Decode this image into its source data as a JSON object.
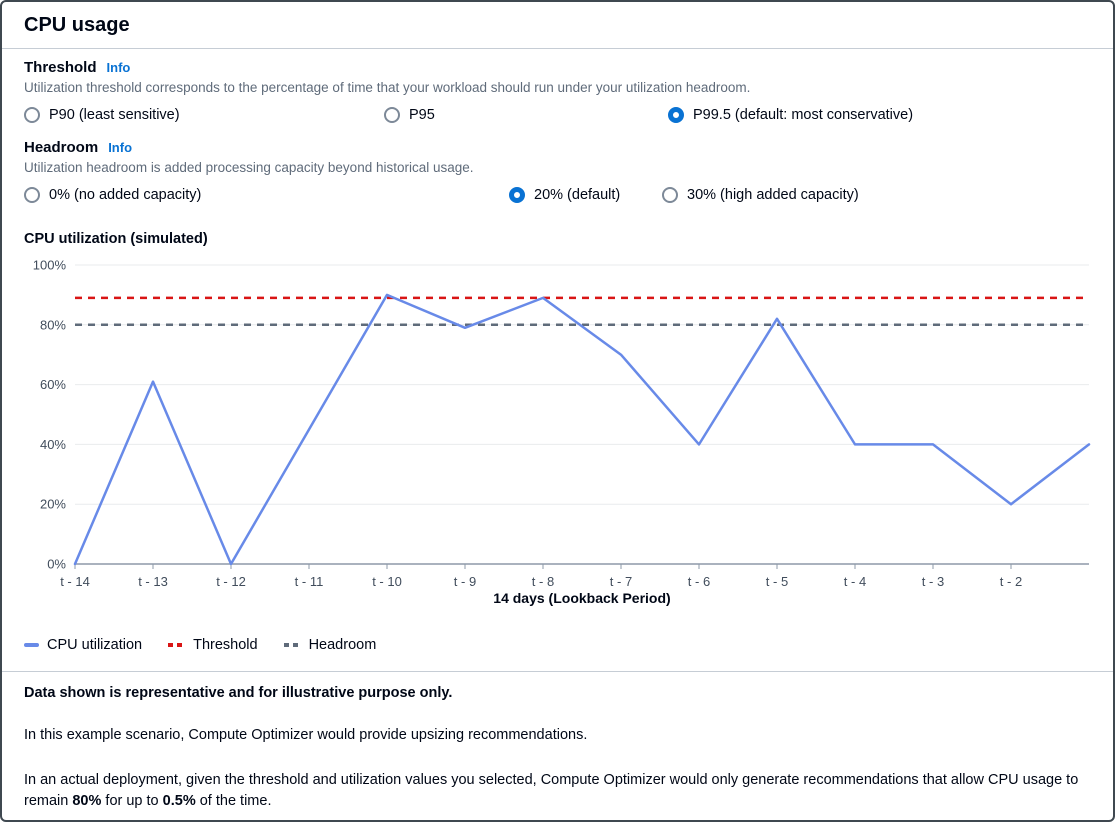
{
  "page": {
    "title": "CPU usage"
  },
  "threshold": {
    "label": "Threshold",
    "info": "Info",
    "description": "Utilization threshold corresponds to the percentage of time that your workload should run under your utilization headroom.",
    "options": [
      {
        "label": "P90 (least sensitive)",
        "selected": false
      },
      {
        "label": "P95",
        "selected": false
      },
      {
        "label": "P99.5 (default: most conservative)",
        "selected": true
      }
    ]
  },
  "headroom": {
    "label": "Headroom",
    "info": "Info",
    "description": "Utilization headroom is added processing capacity beyond historical usage.",
    "options": [
      {
        "label": "0% (no added capacity)",
        "selected": false
      },
      {
        "label": "20% (default)",
        "selected": true
      },
      {
        "label": "30% (high added capacity)",
        "selected": false
      }
    ]
  },
  "chart_data": {
    "type": "line",
    "title": "CPU utilization (simulated)",
    "xlabel": "14 days (Lookback Period)",
    "ylabel": "",
    "ylim": [
      0,
      100
    ],
    "y_ticks": [
      0,
      20,
      40,
      60,
      80,
      100
    ],
    "y_tick_suffix": "%",
    "grid": true,
    "legend_position": "bottom",
    "x_tick_labels": [
      "t - 14",
      "t - 13",
      "t - 12",
      "t - 11",
      "t - 10",
      "t - 9",
      "t - 8",
      "t - 7",
      "t - 6",
      "t - 5",
      "t - 4",
      "t - 3",
      "t - 2"
    ],
    "series": [
      {
        "name": "CPU utilization",
        "type": "line",
        "color": "#688ae8",
        "values": [
          0,
          61,
          0,
          45,
          90,
          79,
          89,
          70,
          40,
          82,
          40,
          40,
          20,
          40
        ]
      },
      {
        "name": "Threshold",
        "type": "dashed-line",
        "color": "#d91515",
        "value": 89
      },
      {
        "name": "Headroom",
        "type": "dashed-line",
        "color": "#5f6b7a",
        "value": 80
      }
    ]
  },
  "legend": [
    {
      "label": "CPU utilization",
      "color": "#688ae8",
      "style": "solid"
    },
    {
      "label": "Threshold",
      "color": "#d91515",
      "style": "dashed"
    },
    {
      "label": "Headroom",
      "color": "#5f6b7a",
      "style": "dashed"
    }
  ],
  "notes": {
    "disclaimer": "Data shown is representative and for illustrative purpose only.",
    "scenario": "In this example scenario, Compute Optimizer would provide upsizing recommendations.",
    "deployment": {
      "part1": "In an actual deployment, given the threshold and utilization values you selected, Compute Optimizer would only generate recommendations that allow CPU usage to remain ",
      "bold1": "80%",
      "part2": " for up to ",
      "bold2": "0.5%",
      "part3": " of the time."
    }
  }
}
